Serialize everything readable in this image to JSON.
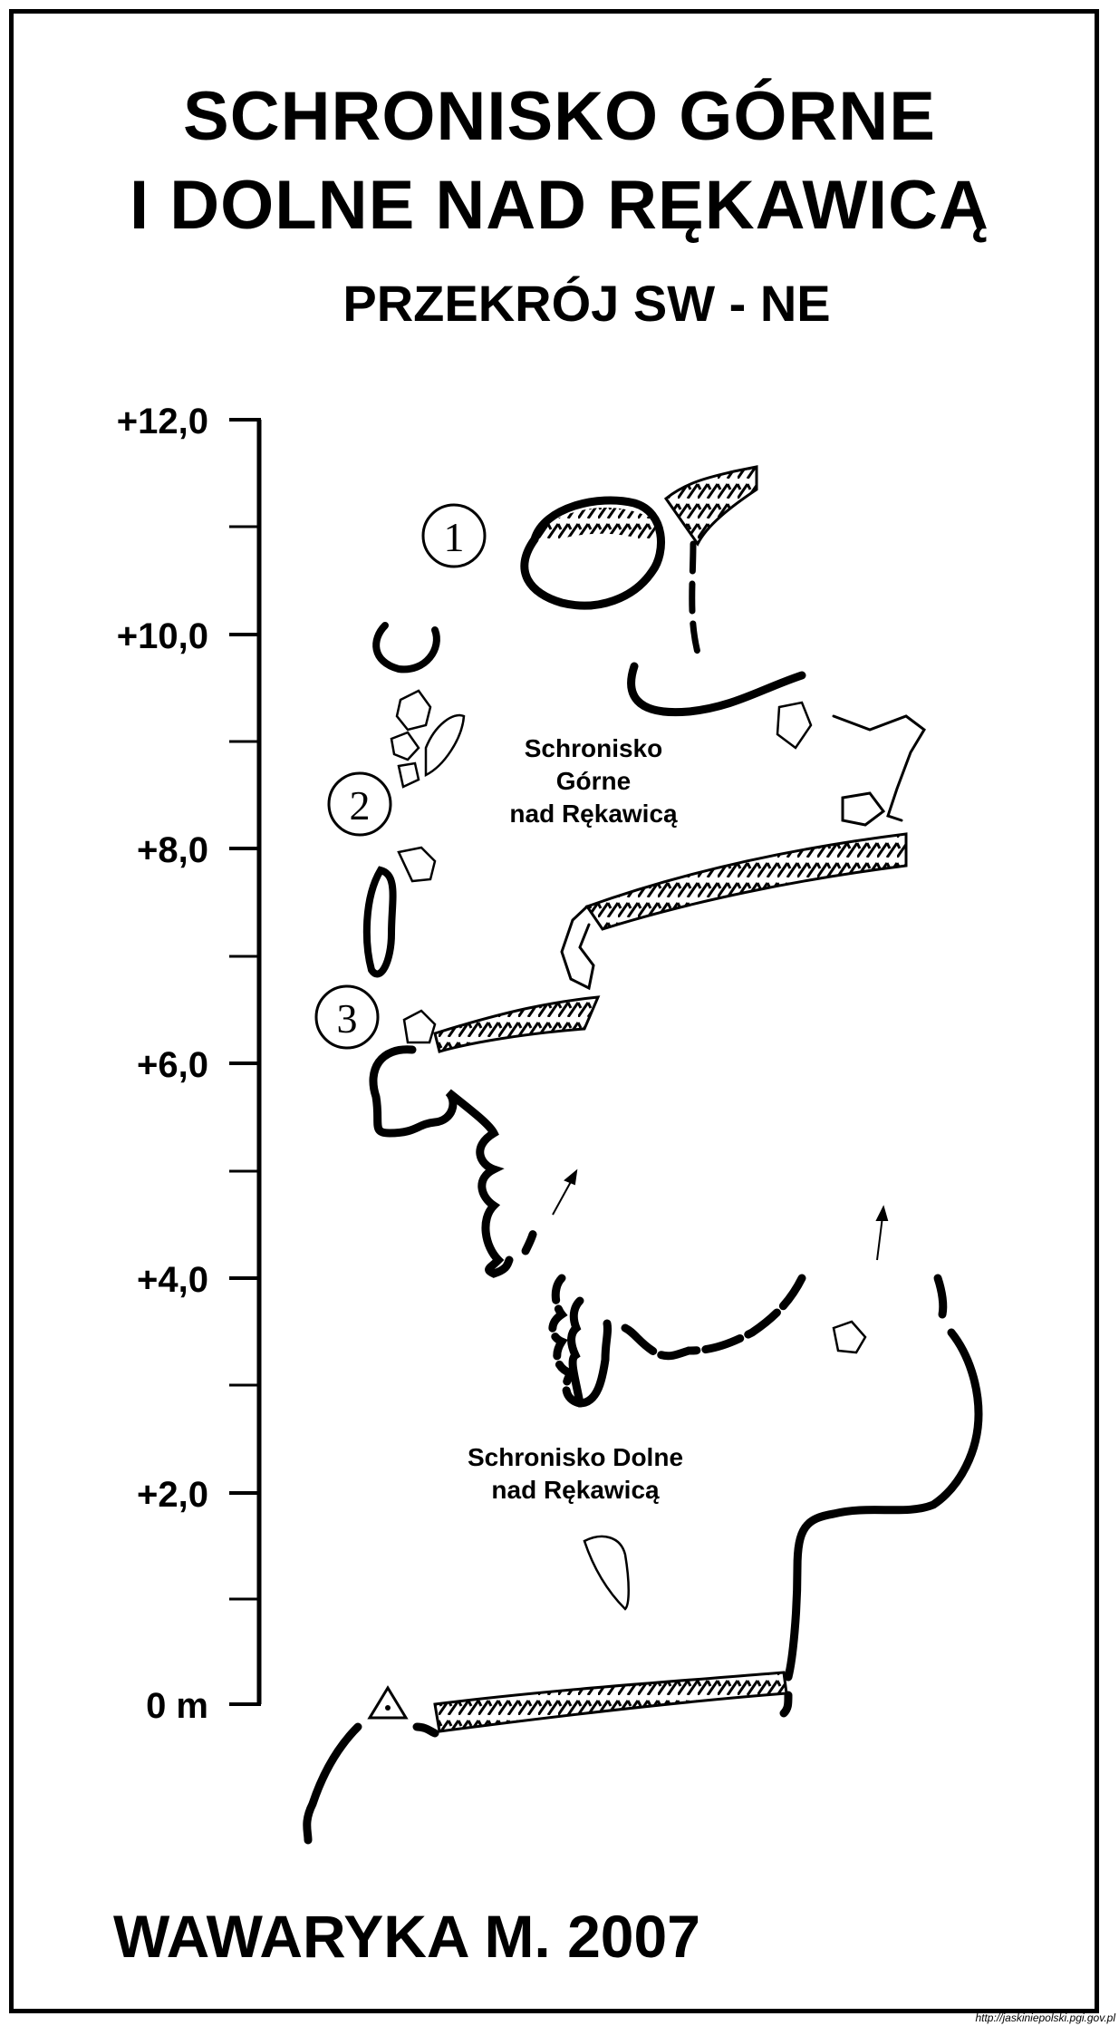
{
  "title": {
    "line1": "SCHRONISKO GÓRNE",
    "line2": "I DOLNE NAD RĘKAWICĄ",
    "subtitle": "PRZEKRÓJ SW - NE"
  },
  "scale": {
    "labels": [
      "+12,0",
      "+10,0",
      "+8,0",
      "+6,0",
      "+4,0",
      "+2,0",
      "0 m"
    ]
  },
  "markers": [
    "1",
    "2",
    "3"
  ],
  "caves": {
    "upper": {
      "line1": "Schronisko",
      "line2": "Górne",
      "line3": "nad Rękawicą"
    },
    "lower": {
      "line1": "Schronisko Dolne",
      "line2": "nad Rękawicą"
    }
  },
  "author": "WAWARYKA M. 2007",
  "source": "http://jaskiniepolski.pgi.gov.pl"
}
